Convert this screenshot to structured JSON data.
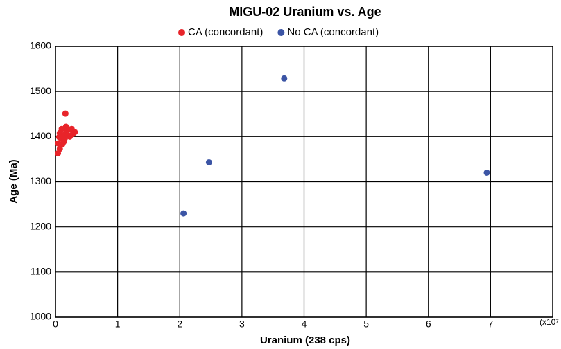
{
  "chart_data": {
    "type": "scatter",
    "title": "MIGU-02 Uranium vs. Age",
    "x_label": "Uranium (238 cps)",
    "y_label": "Age (Ma)",
    "x_multiplier": "(x10⁷",
    "xlim": [
      0,
      8
    ],
    "xticks": [
      0,
      1,
      2,
      3,
      4,
      5,
      6,
      7
    ],
    "ylim": [
      1000,
      1600
    ],
    "yticks": [
      1000,
      1100,
      1200,
      1300,
      1400,
      1500,
      1600
    ],
    "grid": true,
    "series": [
      {
        "name": "CA (concordant)",
        "color": "#e8242a",
        "x": [
          0.16,
          0.04,
          0.07,
          0.11,
          0.09,
          0.13,
          0.18,
          0.17,
          0.22,
          0.26,
          0.28,
          0.23,
          0.31,
          0.07,
          0.1,
          0.13,
          0.04,
          0.06,
          0.15,
          0.2
        ],
        "values": [
          1451,
          1363,
          1373,
          1383,
          1396,
          1403,
          1411,
          1422,
          1416,
          1417,
          1406,
          1400,
          1410,
          1408,
          1417,
          1388,
          1385,
          1399,
          1396,
          1403
        ]
      },
      {
        "name": "No CA (concordant)",
        "color": "#3c55a5",
        "x": [
          2.06,
          2.47,
          3.68,
          6.94
        ],
        "values": [
          1230,
          1343,
          1529,
          1320
        ]
      }
    ]
  }
}
